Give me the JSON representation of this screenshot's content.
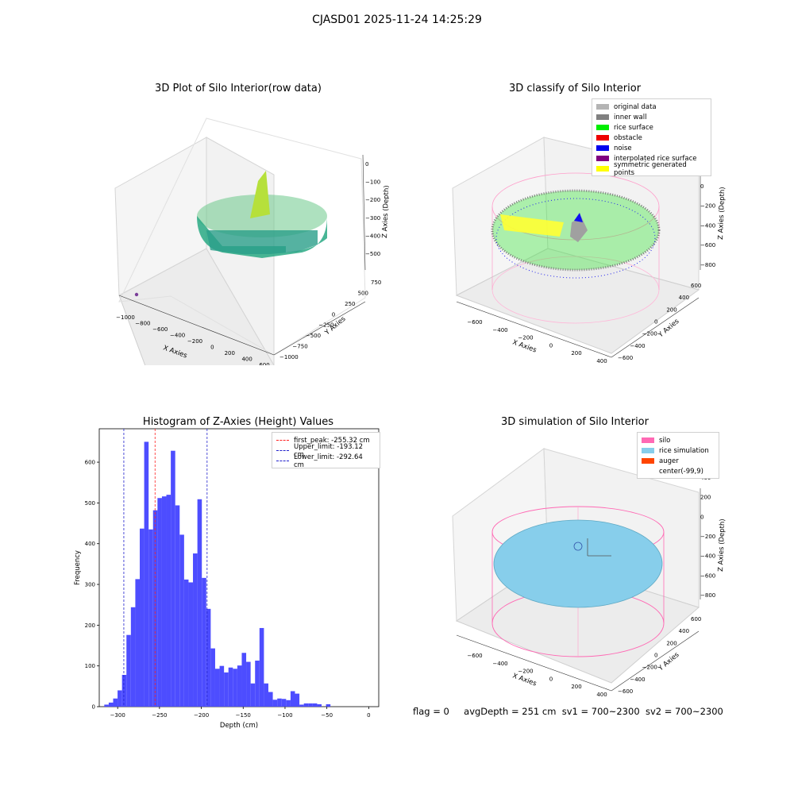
{
  "suptitle": "CJASD01 2025-11-24 14:25:29",
  "footer": {
    "flag": "flag = 0",
    "avg_depth": "avgDepth = 251 cm",
    "sv1": "sv1 = 700~2300",
    "sv2": "sv2 = 700~2300"
  },
  "panels": {
    "raw": {
      "title": "3D Plot of Silo Interior(row data)",
      "xlabel": "X Axies",
      "ylabel": "Y Axies",
      "zlabel": "Z Axies (Depth)",
      "xticks": [
        "−1000",
        "−800",
        "−600",
        "−400",
        "−200",
        "0",
        "200",
        "400",
        "600"
      ],
      "yticks": [
        "−1000",
        "−750",
        "−500",
        "−250",
        "0",
        "250",
        "500",
        "750"
      ],
      "zticks": [
        "0",
        "−100",
        "−200",
        "−300",
        "−400",
        "−500"
      ]
    },
    "classify": {
      "title": "3D classify of Silo Interior",
      "xlabel": "X Axies",
      "ylabel": "Y Axies",
      "zlabel": "Z Axies (Depth)",
      "xticks": [
        "−600",
        "−400",
        "−200",
        "0",
        "200",
        "400"
      ],
      "yticks": [
        "−600",
        "−400",
        "−200",
        "0",
        "200",
        "400",
        "600"
      ],
      "zticks": [
        "200",
        "0",
        "−200",
        "−400",
        "−600",
        "−800"
      ],
      "legend": [
        {
          "label": "original data",
          "color": "#b4b4b4"
        },
        {
          "label": "inner wall",
          "color": "#808080"
        },
        {
          "label": "rice surface",
          "color": "#00ee00"
        },
        {
          "label": "obstacle",
          "color": "#ee0000"
        },
        {
          "label": "noise",
          "color": "#0000ee"
        },
        {
          "label": "interpolated rice surface",
          "color": "#800080"
        },
        {
          "label": "symmetric generated points",
          "color": "#ffff00"
        }
      ]
    },
    "simulation": {
      "title": "3D simulation of Silo Interior",
      "xlabel": "X Axies",
      "ylabel": "Y Axies",
      "zlabel": "Z Axies (Depth)",
      "xticks": [
        "−600",
        "−400",
        "−200",
        "0",
        "200",
        "400"
      ],
      "yticks": [
        "−600",
        "−400",
        "−200",
        "0",
        "200",
        "400",
        "600"
      ],
      "zticks": [
        "400",
        "200",
        "0",
        "−200",
        "−400",
        "−600",
        "−800"
      ],
      "legend": [
        {
          "label": "silo",
          "color": "#ff69b4"
        },
        {
          "label": "rice simulation",
          "color": "#87ceeb"
        },
        {
          "label": "auger",
          "color": "#ff4500"
        },
        {
          "label": "center(-99,9)",
          "color": "#ffffff"
        }
      ]
    }
  },
  "chart_data": {
    "type": "bar",
    "title": "Histogram of Z-Axies (Height) Values",
    "xlabel": "Depth (cm)",
    "ylabel": "Frequency",
    "xlim": [
      -322,
      12
    ],
    "ylim": [
      0,
      682
    ],
    "xticks": [
      -300,
      -250,
      -200,
      -150,
      -100,
      -50,
      0
    ],
    "yticks": [
      0,
      100,
      200,
      300,
      400,
      500,
      600
    ],
    "bin_start": -316,
    "bin_width": 5.3,
    "counts": [
      5,
      10,
      20,
      40,
      78,
      176,
      244,
      313,
      437,
      650,
      435,
      482,
      512,
      516,
      520,
      628,
      494,
      422,
      312,
      305,
      376,
      509,
      316,
      240,
      143,
      93,
      100,
      84,
      96,
      93,
      101,
      132,
      110,
      57,
      113,
      193,
      57,
      36,
      17,
      20,
      19,
      16,
      38,
      32,
      5,
      8,
      8,
      8,
      6,
      0,
      6,
      0
    ],
    "bar_color": "#4d4dff",
    "vlines": [
      {
        "label": "first_peak: -255.32 cm",
        "x": -255.32,
        "color": "#ff2222"
      },
      {
        "label": "Upper_limit: -193.12 cm",
        "x": -193.12,
        "color": "#2222cc"
      },
      {
        "label": "Lower_limit: -292.64 cm",
        "x": -292.64,
        "color": "#2222cc"
      }
    ],
    "legend_position": "top-right"
  }
}
